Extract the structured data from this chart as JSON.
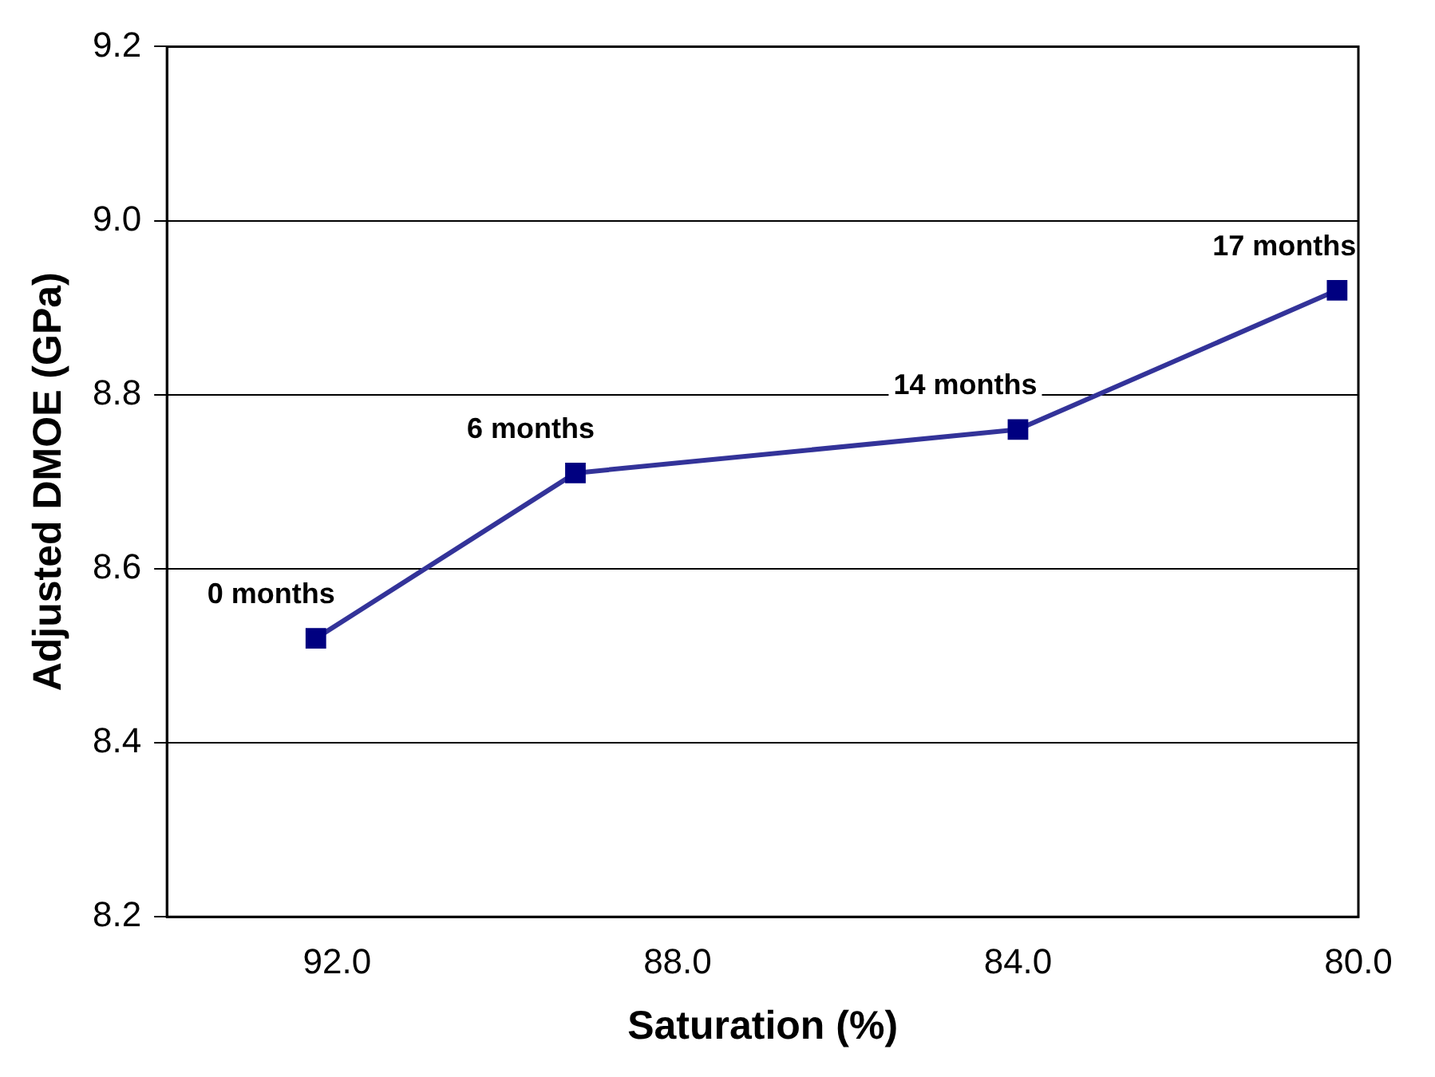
{
  "chart_data": {
    "type": "line",
    "xlabel": "Saturation (%)",
    "ylabel": "Adjusted DMOE (GPa)",
    "x": [
      92.25,
      89.2,
      84,
      80.25
    ],
    "series": [
      {
        "color": "#333399",
        "values": [
          8.52,
          8.71,
          8.76,
          8.92
        ]
      }
    ],
    "xlim": [
      94,
      80
    ],
    "xticks": [
      {
        "value": 92,
        "label": "92.0"
      },
      {
        "value": 88,
        "label": "88.0"
      },
      {
        "value": 84,
        "label": "84.0"
      },
      {
        "value": 80,
        "label": "80.0"
      }
    ],
    "ylim": [
      8.2,
      9.2
    ],
    "yticks": [
      {
        "value": 8.2,
        "label": "8.2"
      },
      {
        "value": 8.4,
        "label": "8.4"
      },
      {
        "value": 8.6,
        "label": "8.6"
      },
      {
        "value": 8.8,
        "label": "8.8"
      },
      {
        "value": 9.0,
        "label": "9.0"
      },
      {
        "value": 9.2,
        "label": "9.2"
      }
    ],
    "annotations": [
      {
        "text": "0 months",
        "x": 92.25,
        "y": 8.52
      },
      {
        "text": "6 months",
        "x": 89.2,
        "y": 8.71
      },
      {
        "text": "14 months",
        "x": 84,
        "y": 8.76
      },
      {
        "text": "17 months",
        "x": 80.25,
        "y": 8.92
      }
    ],
    "grid": "y",
    "legend": false,
    "marker": "square",
    "line_style": "solid"
  }
}
